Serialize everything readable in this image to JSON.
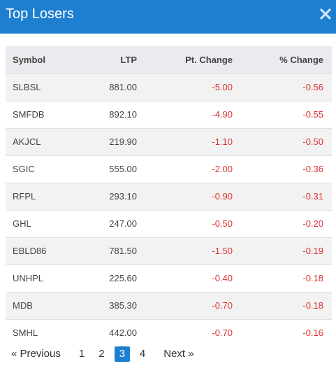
{
  "header": {
    "title": "Top Losers"
  },
  "colors": {
    "header_bg": "#1e7fd1",
    "negative": "#e03131",
    "active_page": "#1e7fd1"
  },
  "table": {
    "columns": [
      "Symbol",
      "LTP",
      "Pt. Change",
      "% Change"
    ],
    "rows": [
      {
        "symbol": "SLBSL",
        "ltp": "881.00",
        "pt_change": "-5.00",
        "pct_change": "-0.56"
      },
      {
        "symbol": "SMFDB",
        "ltp": "892.10",
        "pt_change": "-4.90",
        "pct_change": "-0.55"
      },
      {
        "symbol": "AKJCL",
        "ltp": "219.90",
        "pt_change": "-1.10",
        "pct_change": "-0.50"
      },
      {
        "symbol": "SGIC",
        "ltp": "555.00",
        "pt_change": "-2.00",
        "pct_change": "-0.36"
      },
      {
        "symbol": "RFPL",
        "ltp": "293.10",
        "pt_change": "-0.90",
        "pct_change": "-0.31"
      },
      {
        "symbol": "GHL",
        "ltp": "247.00",
        "pt_change": "-0.50",
        "pct_change": "-0.20"
      },
      {
        "symbol": "EBLD86",
        "ltp": "781.50",
        "pt_change": "-1.50",
        "pct_change": "-0.19"
      },
      {
        "symbol": "UNHPL",
        "ltp": "225.60",
        "pt_change": "-0.40",
        "pct_change": "-0.18"
      },
      {
        "symbol": "MDB",
        "ltp": "385.30",
        "pt_change": "-0.70",
        "pct_change": "-0.18"
      },
      {
        "symbol": "SMHL",
        "ltp": "442.00",
        "pt_change": "-0.70",
        "pct_change": "-0.16"
      }
    ]
  },
  "pagination": {
    "prev_label": "«  Previous",
    "next_label": "Next  »",
    "pages": [
      "1",
      "2",
      "3",
      "4"
    ],
    "active": "3"
  }
}
